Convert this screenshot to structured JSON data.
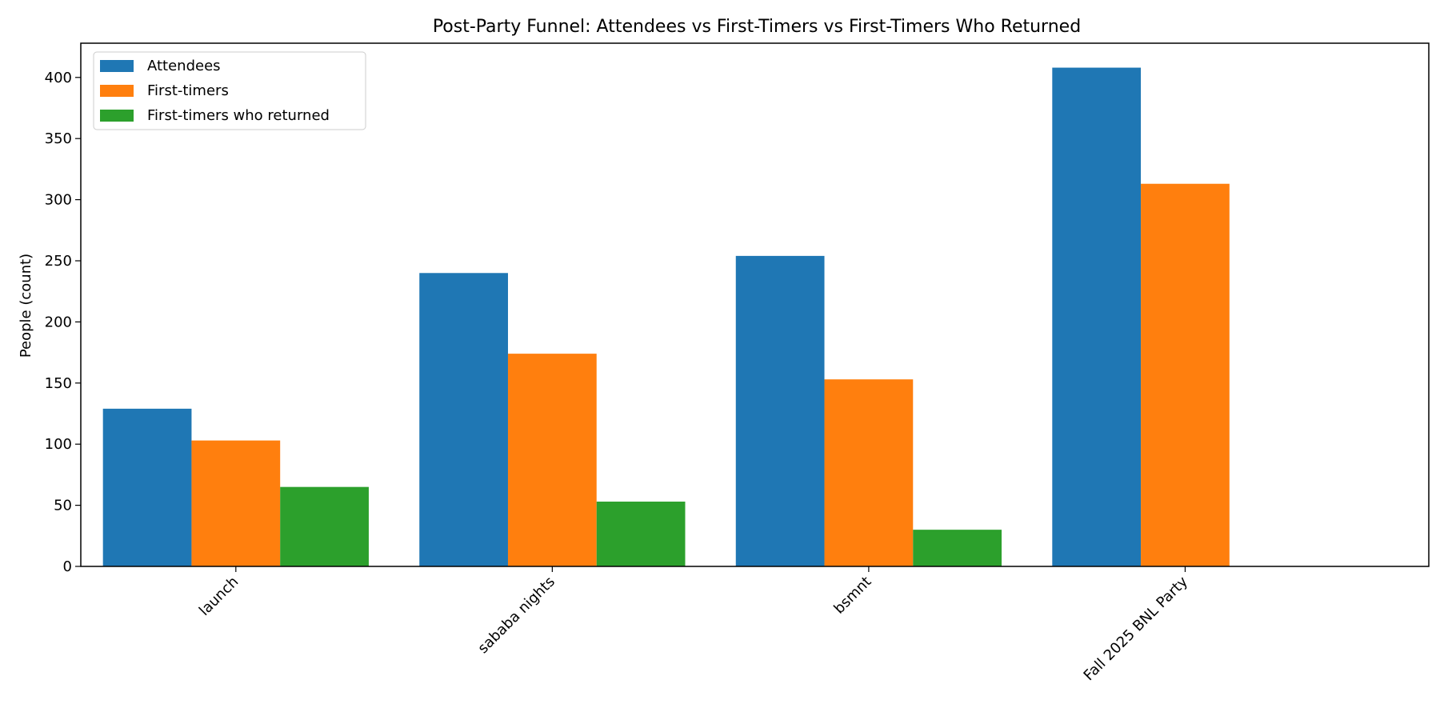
{
  "chart_data": {
    "type": "bar",
    "title": "Post-Party Funnel: Attendees vs First-Timers vs First-Timers Who Returned",
    "xlabel": "",
    "ylabel": "People (count)",
    "categories": [
      "launch",
      "sababa nights",
      "bsmnt",
      "Fall 2025 BNL Party"
    ],
    "series": [
      {
        "name": "Attendees",
        "color": "#1f77b4",
        "values": [
          129,
          240,
          254,
          408
        ]
      },
      {
        "name": "First-timers",
        "color": "#ff7f0e",
        "values": [
          103,
          174,
          153,
          313
        ]
      },
      {
        "name": "First-timers who returned",
        "color": "#2ca02c",
        "values": [
          65,
          53,
          30,
          0
        ]
      }
    ],
    "ylim": [
      0,
      428
    ],
    "yticks": [
      0,
      50,
      100,
      150,
      200,
      250,
      300,
      350,
      400
    ],
    "grid": false,
    "legend_position": "top-left"
  }
}
